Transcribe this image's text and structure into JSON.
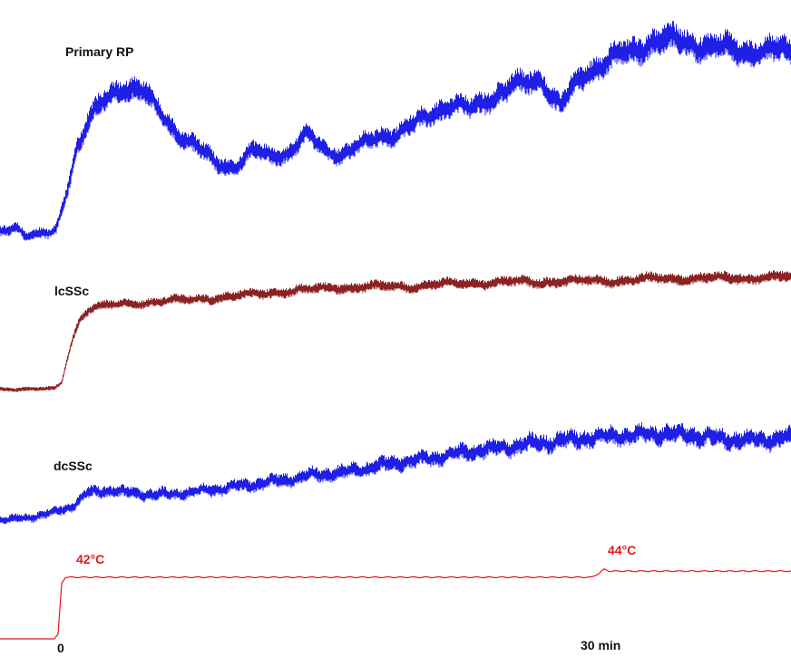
{
  "chart_data": {
    "type": "line",
    "x_unit": "min",
    "x_ticks": [
      {
        "value": 0,
        "label": "0"
      },
      {
        "value": 30,
        "label": "30 min"
      }
    ],
    "xlim": [
      -5.5,
      43
    ],
    "grid": false,
    "legend": "none",
    "series": [
      {
        "name": "Primary RP",
        "color": "#1f1fe6",
        "points": [
          [
            -5.3,
            0.02
          ],
          [
            -3.5,
            0.03
          ],
          [
            -2.5,
            0.07
          ],
          [
            -2.0,
            0.03
          ],
          [
            -0.6,
            0.03
          ],
          [
            -0.3,
            0.05
          ],
          [
            0.3,
            0.25
          ],
          [
            0.8,
            0.45
          ],
          [
            1.5,
            0.6
          ],
          [
            2.5,
            0.7
          ],
          [
            3.5,
            0.76
          ],
          [
            4.5,
            0.74
          ],
          [
            5.5,
            0.62
          ],
          [
            6.5,
            0.52
          ],
          [
            7.5,
            0.46
          ],
          [
            8.5,
            0.38
          ],
          [
            9.5,
            0.36
          ],
          [
            10.5,
            0.44
          ],
          [
            11.5,
            0.42
          ],
          [
            12.5,
            0.43
          ],
          [
            13.5,
            0.52
          ],
          [
            14.5,
            0.45
          ],
          [
            15.5,
            0.42
          ],
          [
            16.5,
            0.47
          ],
          [
            17.5,
            0.52
          ],
          [
            18.5,
            0.52
          ],
          [
            19.5,
            0.58
          ],
          [
            20.5,
            0.64
          ],
          [
            21.5,
            0.66
          ],
          [
            22.5,
            0.65
          ],
          [
            23.5,
            0.7
          ],
          [
            24.5,
            0.74
          ],
          [
            25.5,
            0.78
          ],
          [
            26.5,
            0.8
          ],
          [
            27.0,
            0.7
          ],
          [
            27.5,
            0.66
          ],
          [
            28.5,
            0.8
          ],
          [
            29.5,
            0.86
          ],
          [
            30.5,
            0.9
          ],
          [
            31.5,
            0.94
          ],
          [
            32.5,
            0.98
          ],
          [
            33.5,
            0.99
          ],
          [
            34.5,
            0.98
          ],
          [
            35.5,
            0.96
          ],
          [
            36.5,
            0.95
          ],
          [
            37.5,
            0.94
          ],
          [
            38.5,
            0.93
          ],
          [
            39.5,
            0.94
          ],
          [
            40.5,
            0.93
          ],
          [
            41.5,
            0.94
          ],
          [
            42.4,
            0.94
          ]
        ]
      },
      {
        "name": "lcSSc",
        "color": "#8b2323",
        "points": [
          [
            -5.3,
            0.02
          ],
          [
            -2.0,
            0.02
          ],
          [
            -0.4,
            0.02
          ],
          [
            0.0,
            0.08
          ],
          [
            0.5,
            0.4
          ],
          [
            1.0,
            0.62
          ],
          [
            1.5,
            0.7
          ],
          [
            2.5,
            0.73
          ],
          [
            3.5,
            0.74
          ],
          [
            5.0,
            0.76
          ],
          [
            7.0,
            0.78
          ],
          [
            9.0,
            0.8
          ],
          [
            11.0,
            0.83
          ],
          [
            13.0,
            0.86
          ],
          [
            15.0,
            0.88
          ],
          [
            17.0,
            0.89
          ],
          [
            19.0,
            0.89
          ],
          [
            21.0,
            0.91
          ],
          [
            23.0,
            0.92
          ],
          [
            25.0,
            0.93
          ],
          [
            27.0,
            0.93
          ],
          [
            29.0,
            0.94
          ],
          [
            31.0,
            0.94
          ],
          [
            33.0,
            0.96
          ],
          [
            35.0,
            0.96
          ],
          [
            37.0,
            0.96
          ],
          [
            39.0,
            0.97
          ],
          [
            41.0,
            0.97
          ],
          [
            42.4,
            0.97
          ]
        ]
      },
      {
        "name": "dcSSc",
        "color": "#1f1fe6",
        "points": [
          [
            -5.3,
            0.05
          ],
          [
            -3.5,
            0.03
          ],
          [
            -2.0,
            0.05
          ],
          [
            -0.5,
            0.1
          ],
          [
            0.5,
            0.15
          ],
          [
            1.0,
            0.22
          ],
          [
            1.5,
            0.28
          ],
          [
            2.5,
            0.3
          ],
          [
            3.5,
            0.28
          ],
          [
            5.0,
            0.26
          ],
          [
            6.5,
            0.27
          ],
          [
            8.0,
            0.3
          ],
          [
            9.5,
            0.33
          ],
          [
            11.0,
            0.36
          ],
          [
            12.5,
            0.4
          ],
          [
            14.0,
            0.44
          ],
          [
            15.5,
            0.46
          ],
          [
            17.0,
            0.5
          ],
          [
            18.5,
            0.55
          ],
          [
            20.0,
            0.58
          ],
          [
            21.5,
            0.62
          ],
          [
            23.0,
            0.66
          ],
          [
            24.5,
            0.69
          ],
          [
            26.0,
            0.72
          ],
          [
            27.5,
            0.74
          ],
          [
            29.0,
            0.77
          ],
          [
            30.5,
            0.79
          ],
          [
            32.0,
            0.8
          ],
          [
            33.5,
            0.81
          ],
          [
            35.0,
            0.79
          ],
          [
            36.5,
            0.76
          ],
          [
            38.0,
            0.75
          ],
          [
            39.5,
            0.76
          ],
          [
            41.0,
            0.78
          ],
          [
            42.4,
            0.8
          ]
        ]
      },
      {
        "name": "temperature",
        "color": "#e8141e",
        "points": [
          [
            -5.3,
            0.0
          ],
          [
            -0.4,
            0.0
          ],
          [
            -0.2,
            0.08
          ],
          [
            0.0,
            0.9
          ],
          [
            0.2,
            1.0
          ],
          [
            29.2,
            1.0
          ],
          [
            29.6,
            1.06
          ],
          [
            29.9,
            1.13
          ],
          [
            30.2,
            1.1
          ],
          [
            42.4,
            1.1
          ]
        ]
      }
    ],
    "annotations": [
      {
        "text": "42°C",
        "x": 0.7,
        "series": "temperature",
        "color": "#e8141e"
      },
      {
        "text": "44°C",
        "x": 29.3,
        "series": "temperature",
        "color": "#e8141e"
      }
    ]
  }
}
